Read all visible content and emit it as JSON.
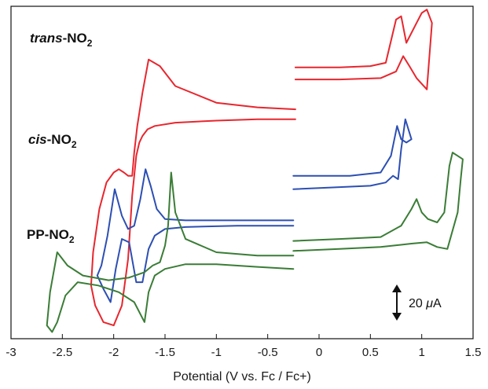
{
  "chart_data": {
    "type": "line",
    "xlabel": "Potential (V vs. Fc / Fc+)",
    "xlim": [
      -3,
      1.5
    ],
    "xticks": [
      -3,
      -2.5,
      -2,
      -1.5,
      -1,
      -0.5,
      0,
      0.5,
      1,
      1.5
    ],
    "xtick_labels": [
      "-3",
      "-2.5",
      "-2",
      "-1.5",
      "-1",
      "-0.5",
      "0",
      "0.5",
      "1",
      "1.5"
    ],
    "grid": false,
    "y_axis_labels": false,
    "scale_bar": {
      "label_value": "20 ",
      "label_italic": "μ",
      "label_unit": "A",
      "value_uA": 20
    },
    "series": [
      {
        "name_italic": "trans",
        "name_main": "-NO",
        "name_sub": "2",
        "color": "#e8262e",
        "scans": [
          {
            "segment": "reduction",
            "x": [
              -0.23,
              -0.6,
              -1.0,
              -1.4,
              -1.6,
              -1.67,
              -1.72,
              -1.75,
              -1.78,
              -1.82,
              -1.86,
              -1.92,
              -2.0,
              -2.1,
              -2.18,
              -2.22,
              -2.2,
              -2.14,
              -2.07,
              -2.0,
              -1.95,
              -1.9,
              -1.86,
              -1.82,
              -1.8,
              -1.77,
              -1.72,
              -1.66,
              -1.55,
              -1.4,
              -1.0,
              -0.6,
              -0.23
            ],
            "y": [
              33,
              33,
              32.8,
              32.5,
              32,
              31.5,
              30.5,
              29.5,
              27.5,
              21.5,
              12,
              5,
              2,
              2.5,
              5,
              8,
              13,
              19.5,
              23.5,
              25,
              25.5,
              25,
              24.5,
              24.5,
              28,
              32,
              37,
              42,
              41,
              38,
              35.5,
              34.8,
              34.5
            ]
          },
          {
            "segment": "oxidation",
            "x": [
              -0.23,
              0.2,
              0.6,
              0.75,
              0.82,
              0.88,
              0.95,
              1.05,
              1.1,
              1.05,
              1.0,
              0.95,
              0.85,
              0.8,
              0.75,
              0.65,
              0.5,
              0.2,
              -0.23
            ],
            "y": [
              39,
              39,
              39.2,
              40.2,
              42.5,
              41,
              39.2,
              37.5,
              47.5,
              49.5,
              49,
              47.5,
              44.5,
              48.5,
              48,
              41.5,
              41,
              40.8,
              40.8
            ]
          }
        ]
      },
      {
        "name_italic": "cis",
        "name_main": "-NO",
        "name_sub": "2",
        "color": "#2d4fb3",
        "scans": [
          {
            "segment": "reduction",
            "x": [
              -0.25,
              -0.8,
              -1.3,
              -1.5,
              -1.6,
              -1.66,
              -1.72,
              -1.78,
              -1.85,
              -1.92,
              -1.98,
              -2.03,
              -2.1,
              -2.16,
              -2.12,
              -2.06,
              -1.99,
              -1.92,
              -1.86,
              -1.8,
              -1.74,
              -1.69,
              -1.64,
              -1.58,
              -1.5,
              -1.3,
              -0.8,
              -0.25
            ],
            "y": [
              17,
              17,
              16.8,
              16.5,
              15.5,
              13.5,
              8.5,
              8.5,
              14.5,
              15,
              10.5,
              5.5,
              7.5,
              9.5,
              11,
              15.5,
              22.5,
              18.5,
              16.5,
              17,
              21,
              25.5,
              23,
              19.5,
              18,
              17.8,
              17.8,
              17.8
            ]
          },
          {
            "segment": "oxidation",
            "x": [
              -0.25,
              0.2,
              0.5,
              0.65,
              0.72,
              0.77,
              0.8,
              0.84,
              0.9,
              0.85,
              0.8,
              0.76,
              0.7,
              0.6,
              0.3,
              -0.25
            ],
            "y": [
              22.5,
              22.8,
              23,
              23.5,
              24.5,
              24,
              28.5,
              33,
              30,
              29.5,
              30,
              32,
              27.5,
              25,
              24.5,
              24.5
            ]
          }
        ]
      },
      {
        "name_main": "PP-NO",
        "name_sub": "2",
        "color": "#3a7d36",
        "scans": [
          {
            "segment": "reduction",
            "x": [
              -0.25,
              -0.6,
              -1.0,
              -1.3,
              -1.5,
              -1.6,
              -1.66,
              -1.7,
              -1.8,
              -1.95,
              -2.15,
              -2.35,
              -2.47,
              -2.55,
              -2.6,
              -2.65,
              -2.62,
              -2.55,
              -2.45,
              -2.3,
              -2.05,
              -1.85,
              -1.7,
              -1.62,
              -1.55,
              -1.5,
              -1.47,
              -1.44,
              -1.4,
              -1.3,
              -1.0,
              -0.6,
              -0.25
            ],
            "y": [
              10.5,
              10.8,
              11.2,
              11.2,
              10.5,
              9.5,
              7,
              2.5,
              5.5,
              7,
              8,
              8.5,
              6.5,
              2.5,
              1,
              2,
              7,
              13,
              11,
              9.5,
              8.8,
              9.2,
              10,
              11,
              11.5,
              14,
              17,
              25,
              19,
              15,
              13,
              12.5,
              12.5
            ]
          },
          {
            "segment": "oxidation",
            "x": [
              -0.25,
              0.2,
              0.6,
              0.8,
              0.9,
              0.95,
              1.0,
              1.06,
              1.15,
              1.22,
              1.27,
              1.3,
              1.35,
              1.4,
              1.38,
              1.35,
              1.25,
              1.15,
              1.05,
              0.9,
              0.6,
              0.2,
              -0.25
            ],
            "y": [
              14.7,
              15,
              15.3,
              17,
              19.5,
              21,
              19,
              18,
              17.5,
              19,
              26,
              28,
              27.5,
              27,
              24,
              19,
              13.5,
              13.8,
              14.5,
              14.3,
              13.8,
              13.5,
              13.2
            ]
          }
        ]
      }
    ]
  }
}
